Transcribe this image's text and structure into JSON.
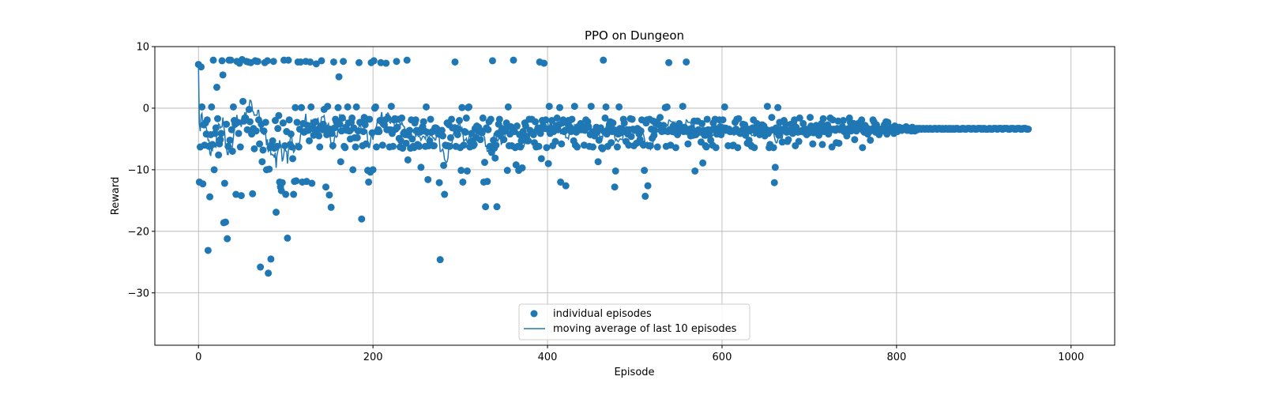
{
  "chart_data": {
    "type": "scatter",
    "title": "PPO on Dungeon",
    "xlabel": "Episode",
    "ylabel": "Reward",
    "xlim": [
      -50,
      1050
    ],
    "ylim": [
      -38.5,
      10
    ],
    "xticks": [
      0,
      200,
      400,
      600,
      800,
      1000
    ],
    "yticks": [
      10,
      0,
      -10,
      -20,
      -30
    ],
    "xtick_labels": [
      "0",
      "200",
      "400",
      "600",
      "800",
      "1000"
    ],
    "ytick_labels": [
      "10",
      "0",
      "−10",
      "−20",
      "−30"
    ],
    "grid": true,
    "legend_position": "bottom-center",
    "colors": {
      "series": "#1f77b4",
      "grid": "#b0b0b0",
      "axis": "#000000"
    },
    "episode_rewards": [
      7.1,
      -12,
      -6.3,
      6.7,
      0.2,
      -12.3,
      -2.7,
      -6,
      -2.4,
      -4.2,
      -1.9,
      -23.1,
      -6.2,
      -14.4,
      -4.3,
      0.2,
      -5.9,
      7.8,
      -10,
      -4.1,
      -3.2,
      3.4,
      -1.7,
      -7.6,
      -5.8,
      -5.1,
      -4.1,
      7.7,
      5.4,
      -18.6,
      -12.2,
      -18.5,
      -2.6,
      -21.2,
      -6.2,
      7.8,
      -5.2,
      7.8,
      -3.5,
      -7,
      0.2,
      -2,
      -2.6,
      -14,
      7.6,
      -2.3,
      -4.1,
      7.3,
      -6.3,
      -14.2,
      7.9,
      1.1,
      -2.1,
      -1.6,
      -1.6,
      7.6,
      -3.5,
      7.5,
      -0.2,
      -2.2,
      7.4,
      -4.2,
      -13.9,
      -3.3,
      -6.6,
      7.7,
      -3.7,
      7.6,
      7.6,
      -1.9,
      -5.8,
      -25.8,
      -2.6,
      -8.7,
      -6.8,
      -3.7,
      7.4,
      -2.3,
      -10,
      7.7,
      -26.8,
      -9.9,
      -6.4,
      -24.5,
      -6.2,
      -5.3,
      7.6,
      -6.5,
      -2,
      -16.9,
      -6.2,
      -3.3,
      -1.2,
      -12,
      -12.8,
      -13.4,
      -12.1,
      -2.4,
      7.8,
      -6.1,
      -14,
      -3.8,
      -21.1,
      7.8,
      -1.9,
      -5.9,
      -4.2,
      -6.3,
      -8.2,
      -14,
      -11.9,
      0.1,
      -11.8,
      -2.3,
      7.5,
      -6.3,
      -3.4,
      7.5,
      0.1,
      -12,
      -2.5,
      -3.9,
      -3.8,
      7.6,
      -11.9,
      -2.8,
      -3.6,
      -5.3,
      7.5,
      0.2,
      -12.2,
      -3.3,
      -4.4,
      -2.3,
      -2.2,
      7.2,
      -3.6,
      -3.4,
      -4.5,
      -6.3,
      -2.9,
      7.7,
      -3.5,
      -2.6,
      -0.2,
      -3.2,
      -12.8,
      -4.3,
      0.3,
      -3.6,
      -14.1,
      -3.4,
      -16.1,
      -4.1,
      -6.1,
      7.5,
      -3.2,
      -1.8,
      -2.2,
      -2.3,
      0.1,
      5.1,
      -2.6,
      -8.7,
      -3.7,
      -1.6,
      7.6,
      -6.2,
      -6.4,
      -3.1,
      -3.6,
      0.2,
      -2.4,
      -3.7,
      -5,
      -2.3,
      -1.6,
      -10,
      -3.2,
      -4.8,
      -6.3,
      0.2,
      -4.8,
      -3.7,
      7.4,
      -2.3,
      -2.3,
      -18,
      -6.1,
      -3.8,
      -1.5,
      -2.7,
      -5.8,
      -1.8,
      -10.1,
      -12,
      -1.8,
      -10.4,
      7.4,
      -4,
      -10,
      7.7,
      0,
      0.2,
      -6.3,
      -3.8,
      -3.5,
      -3.8,
      -2,
      7.4,
      -2.2,
      -6,
      -2.6,
      -2.7,
      -1.9,
      7.3,
      -3.5,
      -1.6,
      -3.5,
      -6.3,
      -3.5,
      0.3,
      -4.1,
      -6.2,
      -1.9,
      -1.7,
      -3.4,
      7.6,
      -3.1,
      -1.8,
      -4.9,
      -6.3,
      -5.3,
      -1.6,
      -6.5,
      -4.1,
      -3.9,
      -4.3,
      -5.7,
      7.8,
      -8.4,
      -4.4,
      -3.6,
      -6.5,
      -1.9,
      -5,
      -6.2,
      -6.4,
      -2.4,
      -1.9,
      -3.6,
      -5.9,
      -6,
      -6.2,
      -3.9,
      -9.6,
      -3.3,
      -3,
      -2.2,
      -3.7,
      -6.2,
      0.2,
      -3.9,
      -11.6,
      -6.1,
      -5.3,
      -1.8,
      -3.9,
      -3.8,
      -6.1,
      -6.1,
      -3.2,
      -3.2,
      -3.3,
      -3.6,
      -4.2,
      -12.1,
      -24.6,
      -4,
      -3.6,
      -4.5,
      -9.3,
      -14,
      -6,
      -6.1,
      -2.4,
      -6.1,
      -2.7,
      -6.2,
      -4.8,
      -1.8,
      -3.2,
      -3.2,
      -3.2,
      7.5,
      -6.2,
      -3.9,
      -4.3,
      -3.4,
      -2,
      -6.4,
      -10.1,
      0.1,
      -12,
      -6,
      -3.8,
      -3.9,
      -1.6,
      -10.2,
      0.1,
      0.2,
      -6.3,
      -5.5,
      -4.1,
      -5.3,
      -6.1,
      -5.9,
      -3.3,
      -4.8,
      -2.9,
      -3.6,
      -3.1,
      -3.8,
      -5.1,
      -3.7,
      -4,
      -1.6,
      -12,
      -8.8,
      -16,
      -3.2,
      -11.9,
      -3.5,
      -2.2,
      -6.2,
      -1.8,
      -7.2,
      7.7,
      -5.2,
      -6.5,
      -8.1,
      -6,
      -16,
      -4.1,
      -2.6,
      -1.8,
      -4.4,
      -3.7,
      -3.3,
      -3.8,
      -5.1,
      -3.7,
      -3.4,
      -2.4,
      -10.1,
      0.2,
      -6.1,
      -4.2,
      -3,
      -6.1,
      -3.5,
      7.8,
      -3.8,
      -6.4,
      -9.2,
      -2.9,
      -6.2,
      -10.1,
      -4.3,
      -6.3,
      -5.3,
      -9.7,
      -3.8,
      -4.3,
      -2.4,
      -2.9,
      -4.6,
      -5.3,
      -5.3,
      -1.8,
      -3.6,
      -3.9,
      -1.8,
      -4,
      -4.3,
      -5.6,
      -2.2,
      -6.3,
      -3.6,
      -3.2,
      -6.2,
      7.5,
      -4.1,
      -8.2,
      -2,
      -2.8,
      7.3,
      -3.3,
      -1.9,
      -6.4,
      -3.4,
      -9,
      0.3,
      -4.1,
      -3.3,
      -2,
      -6.1,
      -3.8,
      -3.6,
      -5.4,
      -2.8,
      -1.6,
      -3.5,
      -2.7,
      0.1,
      -12,
      -5.8,
      -2.4,
      -1.9,
      -3.8,
      -3.6,
      -12.6,
      -3.5,
      -2.5,
      -2,
      -2.1,
      -3.1,
      -3.8,
      -1.8,
      -3.5,
      -5.3,
      0.3,
      -6,
      -3.9,
      -6.3,
      -3,
      -3.3,
      -3.5,
      -2.5,
      -3.5,
      -3.3,
      -3.5,
      -6,
      -3.6,
      -1.9,
      -2.9,
      -2.2,
      -3,
      -6.2,
      -4.3,
      0.3,
      -4,
      -6.3,
      -3.8,
      -4.5,
      -3.6,
      -3.1,
      -3.9,
      -8.7,
      -5.2,
      -3.4,
      -3.2,
      -6.4,
      -6.6,
      7.8,
      -3.8,
      -1.6,
      0.2,
      -4.2,
      -6.2,
      -3.5,
      -2.6,
      -2.2,
      -5.6,
      -3.8,
      -2.4,
      -3.5,
      -12.8,
      -10.2,
      -3.6,
      -6.3,
      -4.2,
      0.2,
      -3.3,
      -4,
      -3.3,
      -3.8,
      -1.8,
      -2.4,
      -3.8,
      -5.4,
      -3.5,
      -4.2,
      -6,
      -3.5,
      -1.7,
      -4.6,
      -1.8,
      -3.4,
      -6.1,
      -3.6,
      -3.5,
      -5.7,
      -3.3,
      -3.4,
      -4.2,
      -5.1,
      -3.7,
      -1.9,
      -5.8,
      -6,
      -10.1,
      -14.3,
      -2.4,
      -1.9,
      -12.6,
      -6.1,
      -1.8,
      -6.1,
      -3.4,
      -4.9,
      -2.1,
      -4.4,
      -3.6,
      -2.5,
      -2.2,
      -6.3,
      -2.6,
      -2.7,
      -1.5,
      -3.6,
      -3.8,
      -3.2,
      -2.8,
      -3.7,
      0.1,
      -6.2,
      0.2,
      -3.8,
      7.4,
      -3.5,
      -6,
      -3.5,
      -3.8,
      -2.9,
      -3.1,
      -3.9,
      -6.4,
      -4,
      -4.3,
      -3.1,
      -2.5,
      -3.7,
      -3.5,
      -3.6,
      0.3,
      -3.8,
      -3.1,
      -3.6,
      7.5,
      -3.8,
      -5.8,
      -3.6,
      -3.4,
      -4.5,
      -3.3,
      -3.5,
      -4.4,
      -2.1,
      -10.2,
      -4.3,
      -4.1,
      -2.1,
      -3.5,
      -3.9,
      -3.8,
      -5.5,
      -2.5,
      -8.9,
      -3.6,
      -4.4,
      -6.1,
      -6.3,
      -1.8,
      -3.5,
      -4.4,
      -3.8,
      -5.2,
      -3.5,
      -6,
      -2.4,
      -3.2,
      -1.8,
      -6.4,
      -4.2,
      -3.4,
      -3.3,
      -1.9,
      -3,
      -4.3,
      -3.3,
      -1.9,
      -3.2,
      0.2,
      -3.6,
      -3.5,
      -3.6,
      -6.1,
      -3.4,
      -3.8,
      -3.8,
      -3.7,
      -6.1,
      -6,
      -3.7,
      -2.3,
      -3.4,
      -1.8,
      -6.4,
      -1.7,
      -4,
      -4.1,
      -3.9,
      -3.6,
      -2.6,
      -3.5,
      -2.7,
      -4.4,
      -3.8,
      -5.7,
      -3.4,
      -5.2,
      -3.7,
      -6,
      -6.2,
      -3.2,
      -1.9,
      -6.4,
      -3.6,
      -3.9,
      -2.5,
      -3,
      -3.5,
      -4.3,
      -4.2,
      -3.2,
      -2.7,
      -3,
      -2.9,
      -4.5,
      -3.6,
      -3.5,
      0.3,
      -4.1,
      -6.4,
      -5.9,
      -3.6,
      -1.5,
      -3.5,
      -6.4,
      -12.1,
      -9.6,
      -3.2,
      -3.9,
      0.1,
      -4.4,
      -2.3,
      -3.4,
      -3.7,
      -5.5,
      -3.5,
      -2,
      -3.3,
      -2.6,
      -3.9,
      -5.4,
      -5.1,
      -3.6,
      -3.8,
      -2.6,
      -3.4,
      -4.1,
      -2.4,
      -1.9,
      -6.1,
      -3.1,
      -3.7,
      -3.9,
      -5.4,
      -1.6,
      -3.8,
      -3.7,
      -3.6,
      -2.5,
      -3.9,
      -3.5,
      -3.4,
      -4.3,
      -3.7,
      -3.6,
      -4,
      -1.5,
      -2.9,
      -3.3,
      -5.8,
      -4,
      -3.8,
      -3.2,
      -2.8,
      -3.6,
      -3.8,
      -4.4,
      -3.3,
      -3.3,
      -2.5,
      -5.9,
      -1.7,
      -3.8,
      -3.4,
      -3.4,
      -3.5,
      -2.7,
      -4.2,
      -3.8,
      -1.6,
      -3.4,
      -6.3,
      -1.9,
      -3.4,
      -3.5,
      -3.6,
      -5.6,
      -3.3,
      -2.1,
      -5.7,
      -3.5,
      -3.4,
      -3.5,
      -3,
      -2,
      -3.8,
      -3.6,
      -3.8,
      -4.5,
      -3.7,
      -3.3,
      -1.6,
      -2.3,
      -3.7,
      -3.2,
      -3.4,
      -2.5,
      -5.1,
      -3.5,
      -3.7,
      -3.3,
      -3.3,
      -2.4,
      -3.3,
      -2.9,
      -1.9,
      -6.4,
      -3.7,
      -3.9,
      -2.8,
      -3.3,
      -3.2,
      -4.2,
      -3.7,
      -3.8,
      -5.2,
      -3.4,
      -3.6,
      -1.9,
      -2.2,
      -3,
      -3.9,
      -2.7,
      -3.5,
      -3.4,
      -4.3,
      -3.4,
      -3.5,
      -3.7,
      -3.3,
      -3.7,
      -2.7,
      -3.3,
      -2.2,
      -4.2,
      -2.3,
      -2.9,
      -3.6,
      -3.5,
      -3.7,
      -3.5,
      -3.5,
      -4.1,
      -2.9,
      -3,
      -3.5,
      -3.8,
      -3.2,
      -3.1,
      -3.2,
      -3.2,
      -3.6,
      -3.4,
      -3.3,
      -3.2,
      -3.2,
      -3,
      -3.6,
      -3.6,
      -3.5,
      -3.3,
      -3.5,
      -3.7,
      -3.1,
      -3.2,
      -3.3,
      -3.7,
      -3.4,
      -3.3,
      -3.5,
      -3.3,
      -3.3,
      -3.3,
      -3.4,
      -3.4,
      -3.3,
      -3.3,
      -3.4,
      -3.4,
      -3.3,
      -3.3,
      -3.4,
      -3.4,
      -3.3,
      -3.3,
      -3.4,
      -3.4,
      -3.4,
      -3.3,
      -3.3,
      -3.3,
      -3.4,
      -3.4,
      -3.3,
      -3.3,
      -3.3,
      -3.4,
      -3.4,
      -3.3,
      -3.4,
      -3.4,
      -3.3,
      -3.3,
      -3.4,
      -3.4,
      -3.3,
      -3.4,
      -3.3,
      -3.4,
      -3.4,
      -3.3,
      -3.4,
      -3.4,
      -3.3,
      -3.3,
      -3.3,
      -3.4,
      -3.4,
      -3.4,
      -3.4,
      -3.3,
      -3.3,
      -3.3,
      -3.4,
      -3.4,
      -3.4,
      -3.3,
      -3.3,
      -3.3,
      -3.3,
      -3.4,
      -3.4,
      -3.3,
      -3.3,
      -3.3,
      -3.4,
      -3.4,
      -3.4,
      -3.3,
      -3.3,
      -3.3,
      -3.3,
      -3.4,
      -3.3,
      -3.4,
      -3.3,
      -3.3,
      -3.4,
      -3.4,
      -3.4,
      -3.4,
      -3.3,
      -3.3,
      -3.4,
      -3.4,
      -3.4,
      -3.3,
      -3.3,
      -3.3,
      -3.3,
      -3.4,
      -3.4,
      -3.3,
      -3.3,
      -3.3,
      -3.3,
      -3.4,
      -3.4,
      -3.3,
      -3.3,
      -3.3,
      -3.3,
      -3.3,
      -3.4,
      -3.4,
      -3.4,
      -3.3,
      -3.3,
      -3.3,
      -3.3,
      -3.4,
      -3.4,
      -3.4,
      -3.3,
      -3.3,
      -3.3,
      -3.3,
      -3.4,
      -3.4,
      -3.4,
      -3.3,
      -3.3,
      -3.3,
      -3.3,
      -3.4,
      -3.4,
      -3.4
    ],
    "legend": [
      {
        "label": "individual episodes",
        "kind": "marker"
      },
      {
        "label": "moving average of last 10 episodes",
        "kind": "line"
      }
    ]
  }
}
